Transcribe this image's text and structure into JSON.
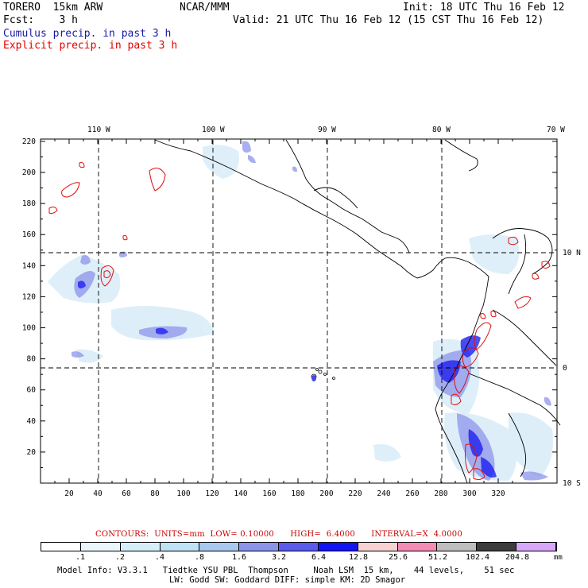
{
  "header": {
    "model": "TORERO  15km ARW",
    "center": "NCAR/MMM",
    "init": "Init: 18 UTC Thu 16 Feb 12",
    "fcst": "Fcst:    3 h",
    "valid": "Valid: 21 UTC Thu 16 Feb 12 (15 CST Thu 16 Feb 12)",
    "field1": "Cumulus precip. in past 3 h",
    "field2": "Explicit precip. in past 3 h"
  },
  "axes": {
    "top_lon_labels": [
      "110 W",
      "100 W",
      "90 W",
      "80 W",
      "70 W"
    ],
    "right_lat_labels": [
      "10 N",
      "0",
      "10 S"
    ],
    "x_ticks": [
      "20",
      "40",
      "60",
      "80",
      "100",
      "120",
      "140",
      "160",
      "180",
      "200",
      "220",
      "240",
      "260",
      "280",
      "300",
      "320"
    ],
    "y_ticks": [
      "20",
      "40",
      "60",
      "80",
      "100",
      "120",
      "140",
      "160",
      "180",
      "200",
      "220"
    ]
  },
  "contours": "CONTOURS:  UNITS=mm  LOW= 0.10000      HIGH=  6.4000      INTERVAL=X  4.0000",
  "colorbar": {
    "colors": [
      "#ffffff",
      "#eaf6fb",
      "#d5eef8",
      "#c0e2f5",
      "#a8c8f0",
      "#8c94ea",
      "#5a5aec",
      "#1414f0",
      "#f6d2d2",
      "#f28cb4",
      "#bebebe",
      "#3c3c3c",
      "#d8a8f8"
    ],
    "labels": [
      ".1",
      ".2",
      ".4",
      ".8",
      "1.6",
      "3.2",
      "6.4",
      "12.8",
      "25.6",
      "51.2",
      "102.4",
      "204.8"
    ],
    "unit": "mm"
  },
  "footer": {
    "line1": "Model Info: V3.3.1   Tiedtke YSU PBL  Thompson     Noah LSM  15 km,    44 levels,    51 sec",
    "line2": "LW: Godd SW: Goddard DIFF: simple KM: 2D Smagor"
  }
}
